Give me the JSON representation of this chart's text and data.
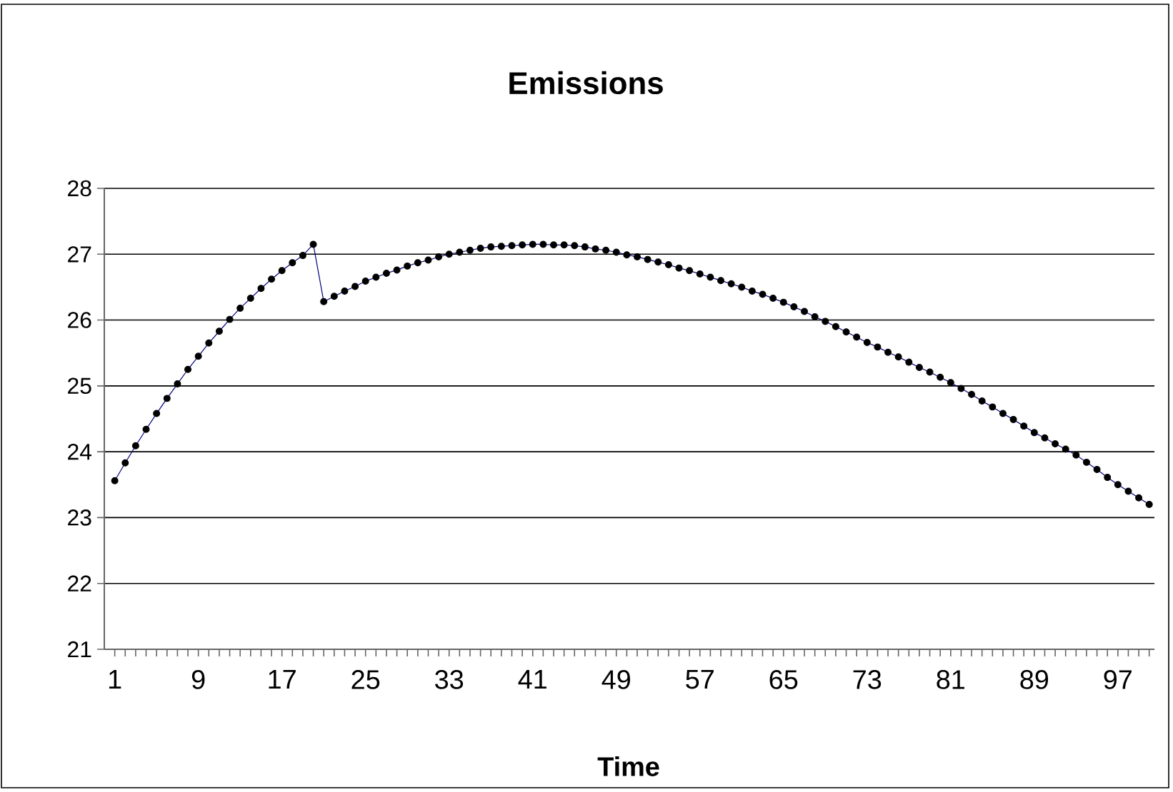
{
  "chart_data": {
    "type": "line",
    "title": "Emissions",
    "xlabel": "Time",
    "categories": [
      "1",
      null,
      null,
      null,
      null,
      null,
      null,
      null,
      "9",
      null,
      null,
      null,
      null,
      null,
      null,
      null,
      "17",
      null,
      null,
      null,
      null,
      null,
      null,
      null,
      "25",
      null,
      null,
      null,
      null,
      null,
      null,
      null,
      "33",
      null,
      null,
      null,
      null,
      null,
      null,
      null,
      "41",
      null,
      null,
      null,
      null,
      null,
      null,
      null,
      "49",
      null,
      null,
      null,
      null,
      null,
      null,
      null,
      "57",
      null,
      null,
      null,
      null,
      null,
      null,
      null,
      "65",
      null,
      null,
      null,
      null,
      null,
      null,
      null,
      "73",
      null,
      null,
      null,
      null,
      null,
      null,
      null,
      "81",
      null,
      null,
      null,
      null,
      null,
      null,
      null,
      "89",
      null,
      null,
      null,
      null,
      null,
      null,
      null,
      "97",
      null,
      null,
      null
    ],
    "series": [
      {
        "color": "#000080",
        "values": [
          23.56,
          23.83,
          24.09,
          24.34,
          24.58,
          24.81,
          25.03,
          25.25,
          25.45,
          25.65,
          25.83,
          26.01,
          26.18,
          26.33,
          26.48,
          26.62,
          26.75,
          26.87,
          26.98,
          27.15,
          26.28,
          26.36,
          26.44,
          26.51,
          26.59,
          26.65,
          26.71,
          26.76,
          26.82,
          26.87,
          26.91,
          26.96,
          27.0,
          27.03,
          27.06,
          27.09,
          27.11,
          27.12,
          27.13,
          27.14,
          27.15,
          27.15,
          27.14,
          27.14,
          27.13,
          27.11,
          27.08,
          27.06,
          27.03,
          26.99,
          26.96,
          26.92,
          26.88,
          26.84,
          26.79,
          26.75,
          26.7,
          26.65,
          26.6,
          26.55,
          26.5,
          26.44,
          26.39,
          26.33,
          26.27,
          26.2,
          26.13,
          26.05,
          25.98,
          25.9,
          25.82,
          25.74,
          25.66,
          25.59,
          25.51,
          25.44,
          25.36,
          25.28,
          25.21,
          25.13,
          25.05,
          24.96,
          24.87,
          24.77,
          24.68,
          24.58,
          24.49,
          24.39,
          24.29,
          24.21,
          24.12,
          24.04,
          23.95,
          23.84,
          23.73,
          23.61,
          23.5,
          23.4,
          23.3,
          23.2
        ]
      }
    ],
    "ylim": [
      21,
      28
    ],
    "yticks": [
      21,
      22,
      23,
      24,
      25,
      26,
      27,
      28
    ],
    "grid": "y",
    "marker": "circle",
    "line_style": "solid"
  }
}
